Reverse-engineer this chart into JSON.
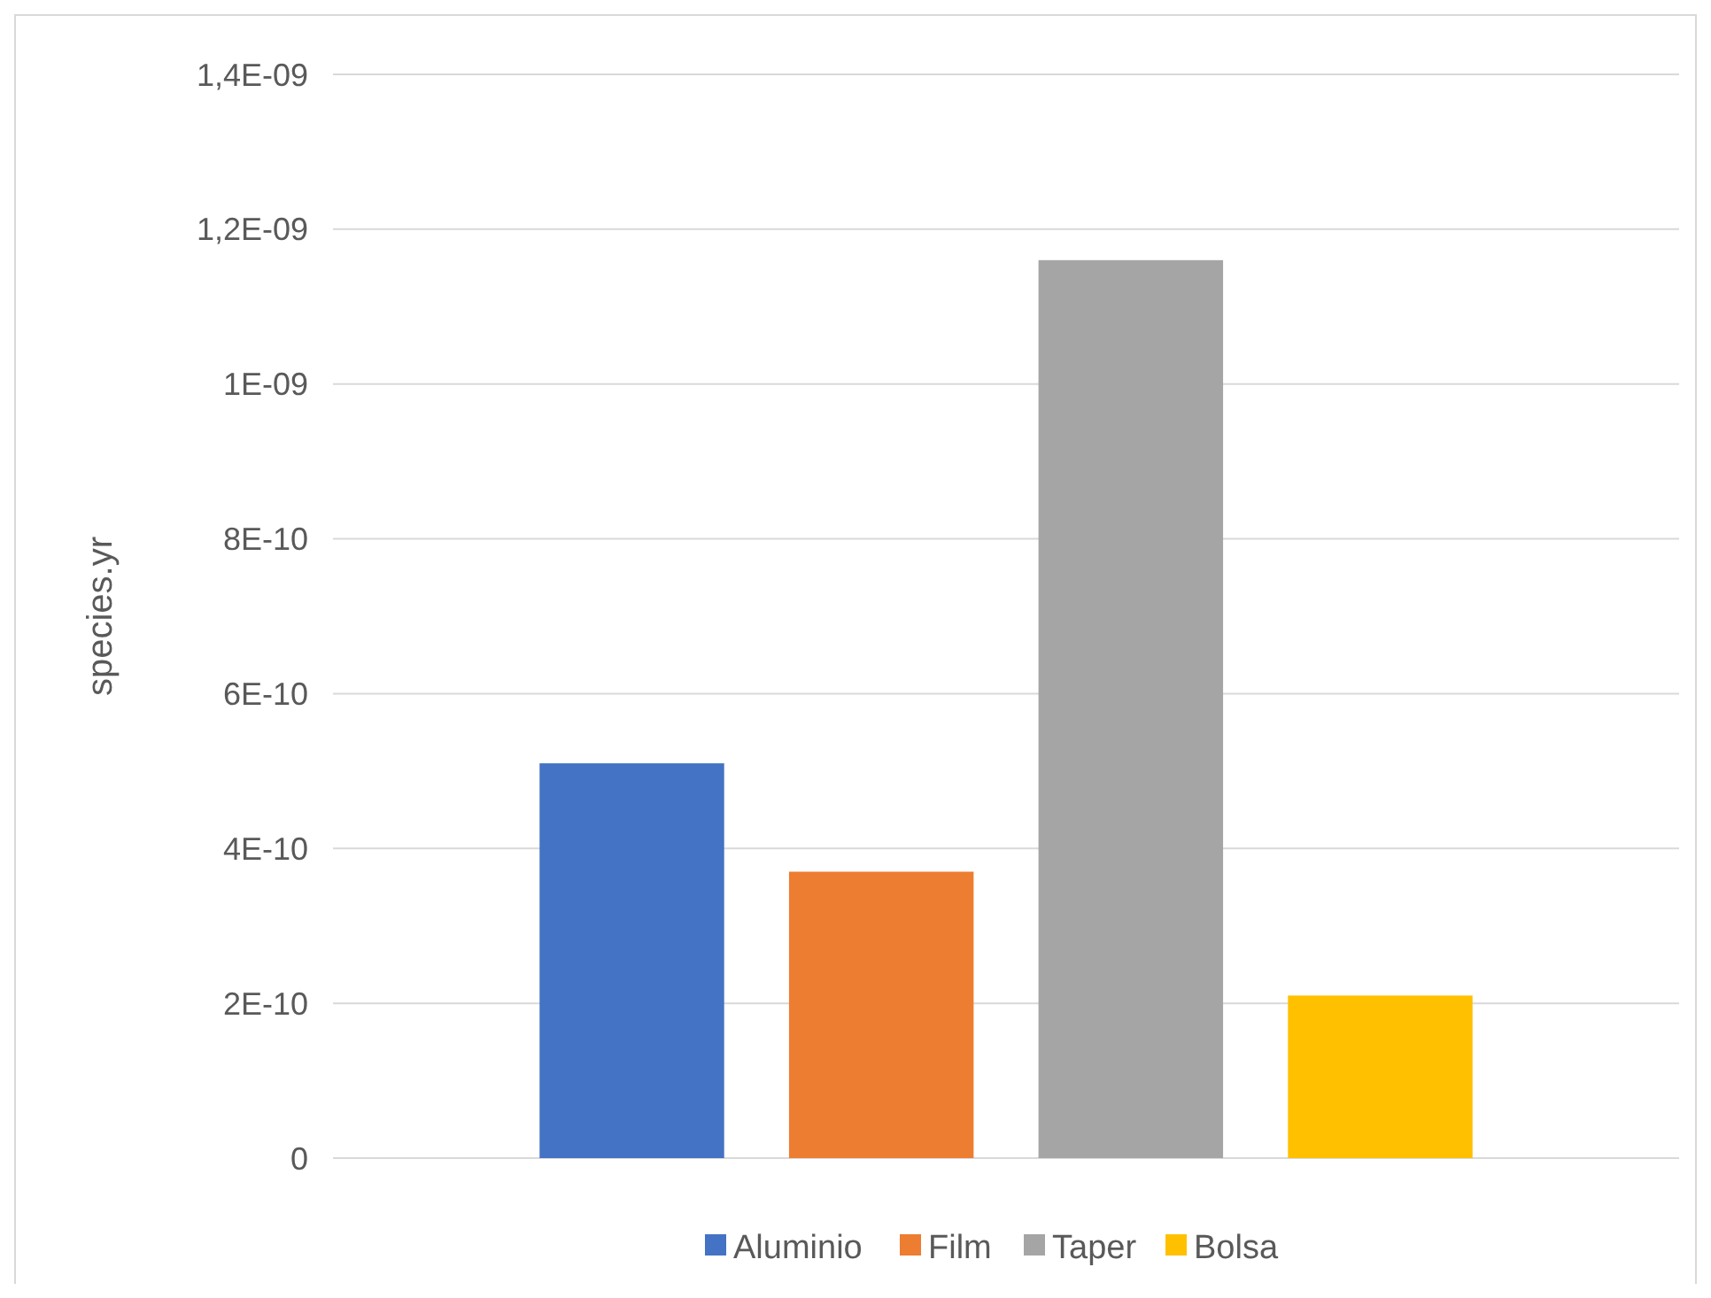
{
  "chart_data": {
    "type": "bar",
    "ylabel": "species.yr",
    "categories": [
      null
    ],
    "series": [
      {
        "name": "Aluminio",
        "color": "#4472c4",
        "values": [
          5.1e-10
        ]
      },
      {
        "name": "Film",
        "color": "#ed7d31",
        "values": [
          3.7e-10
        ]
      },
      {
        "name": "Taper",
        "color": "#a5a5a5",
        "values": [
          1.16e-09
        ]
      },
      {
        "name": "Bolsa",
        "color": "#ffc000",
        "values": [
          2.1e-10
        ]
      }
    ],
    "ylim": [
      0,
      1.4e-09
    ],
    "yticks": [
      0,
      {
        "value": 2e-10,
        "label": "2E-10"
      },
      {
        "value": 4e-10,
        "label": "4E-10"
      },
      {
        "value": 6e-10,
        "label": "6E-10"
      },
      {
        "value": 8e-10,
        "label": "8E-10"
      },
      {
        "value": 1e-09,
        "label": "1E-09"
      },
      {
        "value": 1.2e-09,
        "label": "1,2E-09"
      },
      {
        "value": 1.4e-09,
        "label": "1,4E-09"
      }
    ],
    "grid": "y",
    "legend": "bottom"
  }
}
